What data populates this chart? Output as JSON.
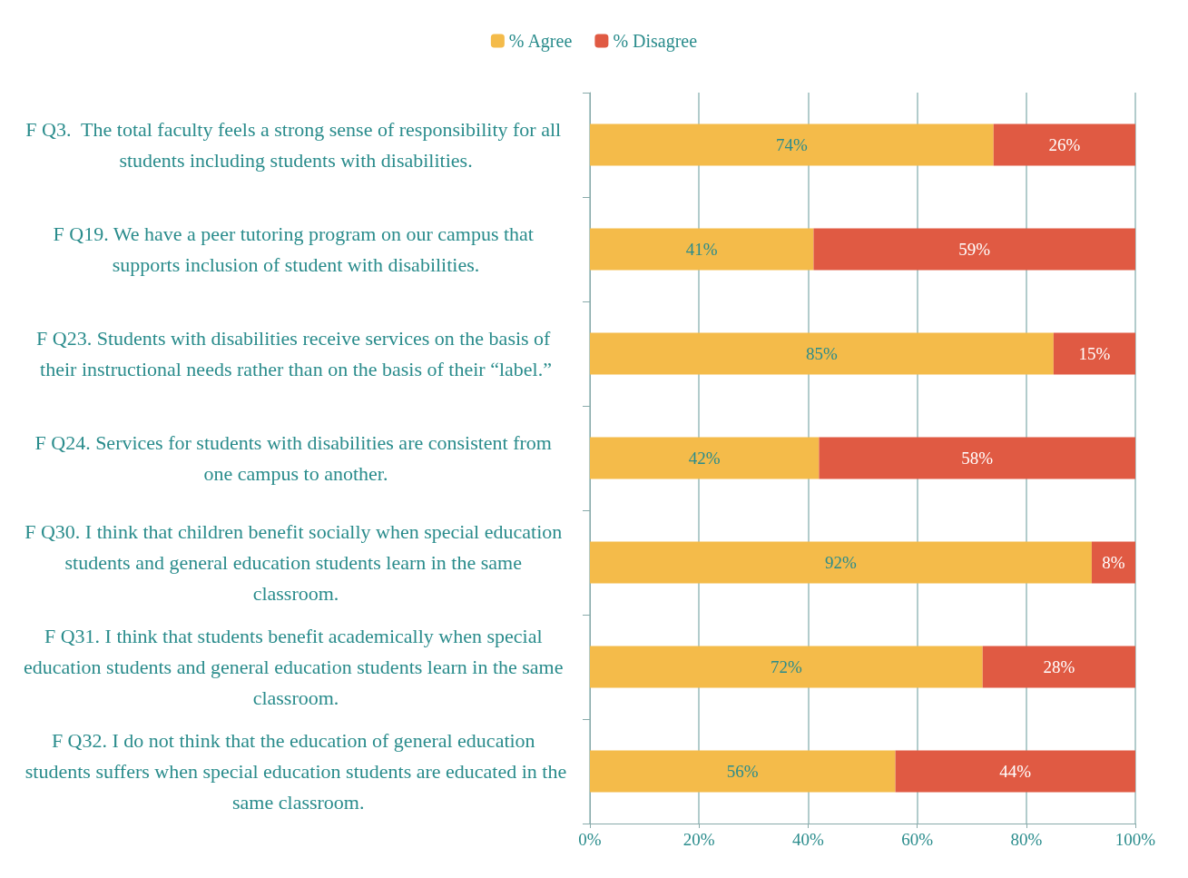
{
  "chart_data": {
    "type": "bar",
    "orientation": "horizontal",
    "stacked": true,
    "categories": [
      "F Q3.  The total faculty feels a strong sense of responsibility for all students including students with disabilities.",
      "F Q19. We have a peer tutoring program on our campus that supports inclusion of student with disabilities.",
      "F Q23. Students with disabilities receive services on the basis of their instructional needs rather than on the basis of their “label.”",
      "F Q24. Services for students with disabilities are consistent from one campus to another.",
      "F Q30. I think that children benefit socially when special education students and general education students learn in the same classroom.",
      "F Q31. I think that students benefit academically when special education students and general education students learn in the same classroom.",
      "F Q32. I do not think that the education of general education students suffers when special education students are educated in the same classroom."
    ],
    "series": [
      {
        "name": "% Agree",
        "color": "#f4bb4a",
        "values": [
          74,
          41,
          85,
          42,
          92,
          72,
          56
        ],
        "value_labels": [
          "74%",
          "41%",
          "85%",
          "42%",
          "92%",
          "72%",
          "56%"
        ]
      },
      {
        "name": "% Disagree",
        "color": "#e05a43",
        "values": [
          26,
          59,
          15,
          58,
          8,
          28,
          44
        ],
        "value_labels": [
          "26%",
          "59%",
          "15%",
          "58%",
          "8%",
          "28%",
          "44%"
        ]
      }
    ],
    "xlim": [
      0,
      100
    ],
    "xticks": [
      {
        "value": 0,
        "label": "0%"
      },
      {
        "value": 20,
        "label": "20%"
      },
      {
        "value": 40,
        "label": "40%"
      },
      {
        "value": 60,
        "label": "60%"
      },
      {
        "value": 80,
        "label": "80%"
      },
      {
        "value": 100,
        "label": "100%"
      }
    ],
    "grid": "x",
    "legend": "top"
  }
}
